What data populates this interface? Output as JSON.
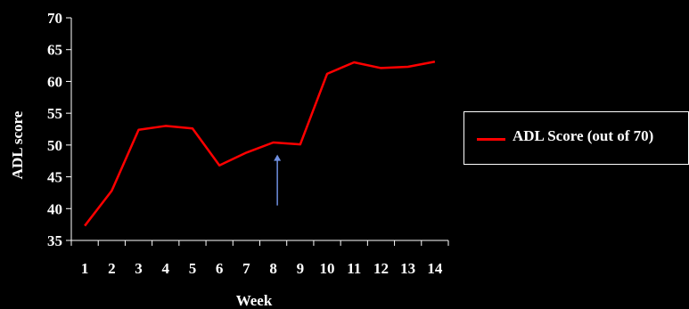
{
  "chart_data": {
    "type": "line",
    "title": "",
    "xlabel": "Week",
    "ylabel": "ADL score",
    "x": [
      1,
      2,
      3,
      4,
      5,
      6,
      7,
      8,
      9,
      10,
      11,
      12,
      13,
      14
    ],
    "series": [
      {
        "name": "ADL Score (out of 70)",
        "color": "#ff0000",
        "values": [
          37.3,
          42.8,
          52.4,
          53.0,
          52.6,
          46.8,
          48.8,
          50.4,
          50.1,
          61.2,
          63.0,
          62.1,
          62.3,
          63.1
        ]
      }
    ],
    "ylim": [
      35,
      70
    ],
    "yticks": [
      35,
      40,
      45,
      50,
      55,
      60,
      65,
      70
    ],
    "xticks": [
      "1",
      "2",
      "3",
      "4",
      "5",
      "6",
      "7",
      "8",
      "9",
      "10",
      "11",
      "12",
      "13",
      "14"
    ],
    "grid": false,
    "legend": "right",
    "annotations": [
      {
        "type": "arrow",
        "color": "#6f8fe0",
        "x": 8.15,
        "y_from": 40.5,
        "y_to": 48.5
      }
    ],
    "colors": {
      "background": "#000000",
      "axis": "#ffffff",
      "text": "#ffffff"
    }
  }
}
